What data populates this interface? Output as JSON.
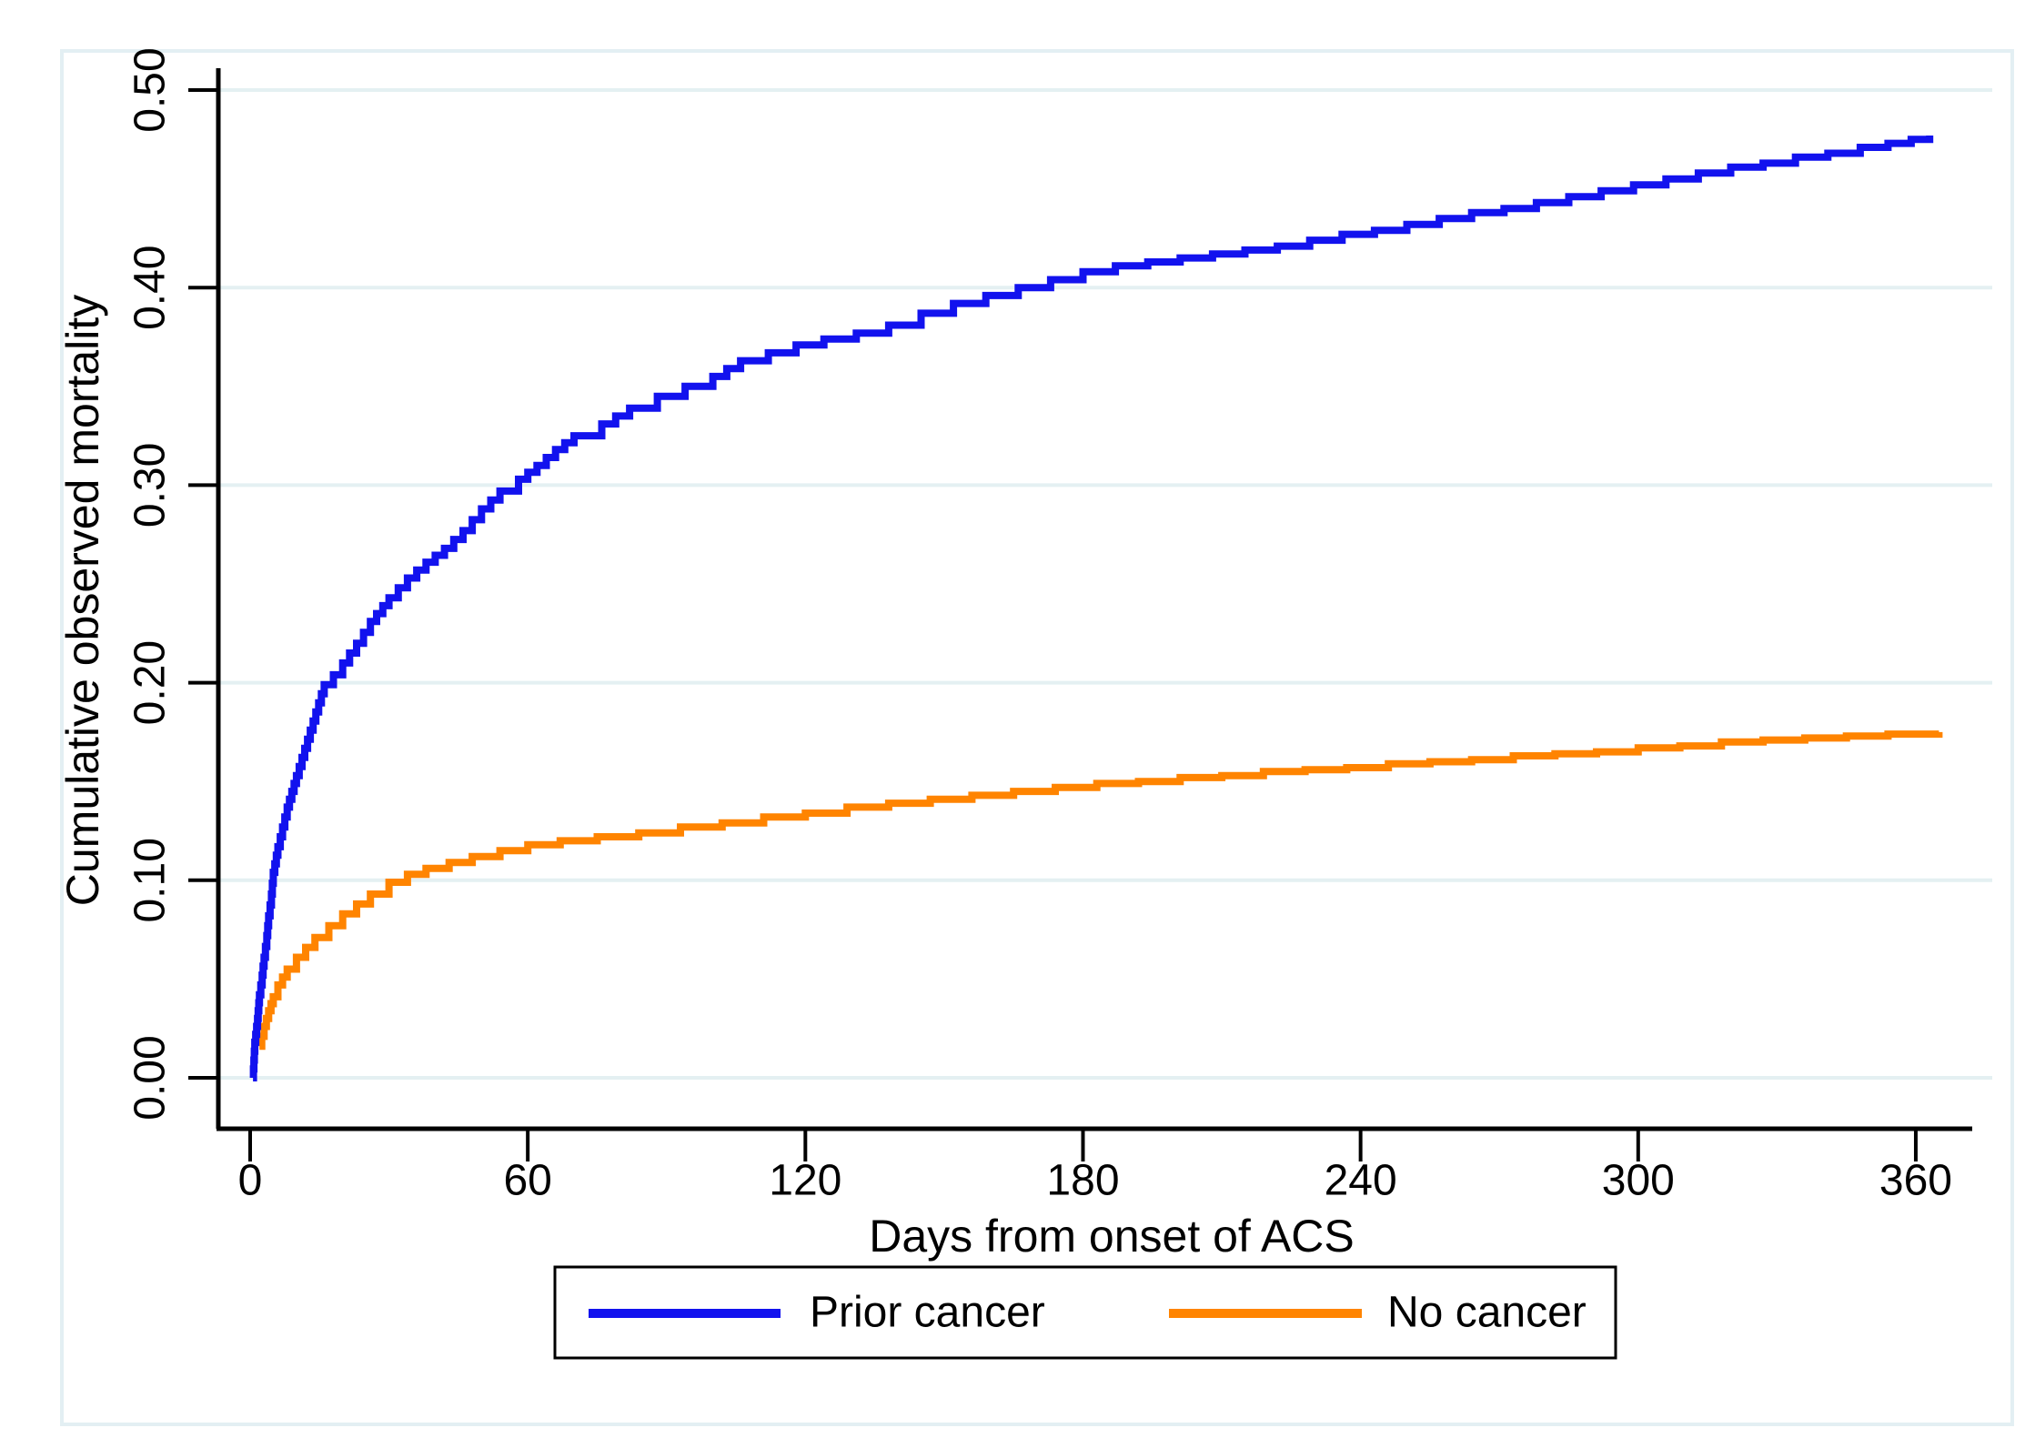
{
  "chart_data": {
    "type": "line",
    "subtype": "kaplan-meier-step",
    "title": "",
    "xlabel": "Days from onset of ACS",
    "ylabel": "Cumulative observed mortality",
    "x_ticks": [
      0,
      60,
      120,
      180,
      240,
      300,
      360
    ],
    "y_tick_labels": [
      "0.00",
      "0.10",
      "0.20",
      "0.30",
      "0.40",
      "0.50"
    ],
    "y_tick_values": [
      0.0,
      0.1,
      0.2,
      0.3,
      0.4,
      0.5
    ],
    "xlim": [
      0,
      372
    ],
    "ylim": [
      0,
      0.511
    ],
    "grid": "horizontal",
    "legend_position": "bottom-center",
    "legend_entries": [
      "Prior cancer",
      "No cancer"
    ],
    "series": [
      {
        "name": "Prior cancer",
        "color": "#1212ee",
        "points": [
          [
            0.6,
            0.0
          ],
          [
            1,
            0.018
          ],
          [
            1.6,
            0.03
          ],
          [
            2,
            0.042
          ],
          [
            2.6,
            0.052
          ],
          [
            3,
            0.061
          ],
          [
            3.6,
            0.072
          ],
          [
            4,
            0.082
          ],
          [
            4.6,
            0.093
          ],
          [
            5,
            0.104
          ],
          [
            6,
            0.117
          ],
          [
            7,
            0.127
          ],
          [
            8,
            0.137
          ],
          [
            10,
            0.153
          ],
          [
            13,
            0.176
          ],
          [
            16,
            0.199
          ],
          [
            18,
            0.204
          ],
          [
            20,
            0.21
          ],
          [
            23,
            0.22
          ],
          [
            26,
            0.231
          ],
          [
            30,
            0.243
          ],
          [
            34,
            0.253
          ],
          [
            38,
            0.261
          ],
          [
            42,
            0.268
          ],
          [
            46,
            0.277
          ],
          [
            50,
            0.288
          ],
          [
            54,
            0.297
          ],
          [
            58,
            0.303
          ],
          [
            62,
            0.31
          ],
          [
            66,
            0.318
          ],
          [
            70,
            0.325
          ],
          [
            76,
            0.331
          ],
          [
            82,
            0.339
          ],
          [
            88,
            0.345
          ],
          [
            94,
            0.35
          ],
          [
            100,
            0.355
          ],
          [
            106,
            0.363
          ],
          [
            112,
            0.367
          ],
          [
            118,
            0.371
          ],
          [
            124,
            0.374
          ],
          [
            131,
            0.377
          ],
          [
            138,
            0.381
          ],
          [
            145,
            0.387
          ],
          [
            152,
            0.392
          ],
          [
            159,
            0.396
          ],
          [
            166,
            0.4
          ],
          [
            173,
            0.404
          ],
          [
            180,
            0.408
          ],
          [
            187,
            0.411
          ],
          [
            194,
            0.413
          ],
          [
            201,
            0.415
          ],
          [
            208,
            0.417
          ],
          [
            215,
            0.419
          ],
          [
            222,
            0.421
          ],
          [
            229,
            0.424
          ],
          [
            236,
            0.427
          ],
          [
            243,
            0.429
          ],
          [
            250,
            0.432
          ],
          [
            257,
            0.435
          ],
          [
            264,
            0.438
          ],
          [
            271,
            0.44
          ],
          [
            278,
            0.443
          ],
          [
            285,
            0.446
          ],
          [
            292,
            0.449
          ],
          [
            299,
            0.452
          ],
          [
            306,
            0.455
          ],
          [
            313,
            0.458
          ],
          [
            320,
            0.461
          ],
          [
            327,
            0.463
          ],
          [
            334,
            0.466
          ],
          [
            341,
            0.468
          ],
          [
            348,
            0.471
          ],
          [
            354,
            0.473
          ],
          [
            359,
            0.475
          ],
          [
            363,
            0.477
          ]
        ]
      },
      {
        "name": "No cancer",
        "color": "#ff8400",
        "points": [
          [
            2,
            0.016
          ],
          [
            2.5,
            0.021
          ],
          [
            3,
            0.026
          ],
          [
            3.5,
            0.03
          ],
          [
            4,
            0.034
          ],
          [
            5,
            0.041
          ],
          [
            6,
            0.047
          ],
          [
            7,
            0.051
          ],
          [
            8,
            0.055
          ],
          [
            10,
            0.061
          ],
          [
            12,
            0.066
          ],
          [
            14,
            0.071
          ],
          [
            17,
            0.077
          ],
          [
            20,
            0.083
          ],
          [
            23,
            0.088
          ],
          [
            26,
            0.093
          ],
          [
            30,
            0.099
          ],
          [
            34,
            0.103
          ],
          [
            38,
            0.106
          ],
          [
            43,
            0.109
          ],
          [
            48,
            0.112
          ],
          [
            54,
            0.115
          ],
          [
            60,
            0.118
          ],
          [
            67,
            0.12
          ],
          [
            75,
            0.122
          ],
          [
            84,
            0.124
          ],
          [
            93,
            0.127
          ],
          [
            102,
            0.129
          ],
          [
            111,
            0.132
          ],
          [
            120,
            0.134
          ],
          [
            129,
            0.137
          ],
          [
            138,
            0.139
          ],
          [
            147,
            0.141
          ],
          [
            156,
            0.143
          ],
          [
            165,
            0.145
          ],
          [
            174,
            0.147
          ],
          [
            183,
            0.149
          ],
          [
            192,
            0.15
          ],
          [
            201,
            0.152
          ],
          [
            210,
            0.153
          ],
          [
            219,
            0.155
          ],
          [
            228,
            0.156
          ],
          [
            237,
            0.157
          ],
          [
            246,
            0.159
          ],
          [
            255,
            0.16
          ],
          [
            264,
            0.161
          ],
          [
            273,
            0.163
          ],
          [
            282,
            0.164
          ],
          [
            291,
            0.165
          ],
          [
            300,
            0.167
          ],
          [
            309,
            0.168
          ],
          [
            318,
            0.17
          ],
          [
            327,
            0.171
          ],
          [
            336,
            0.172
          ],
          [
            345,
            0.173
          ],
          [
            354,
            0.174
          ],
          [
            365,
            0.175
          ]
        ]
      }
    ]
  },
  "colors": {
    "prior_cancer_line": "#1212ee",
    "no_cancer_line": "#ff8400",
    "gridline": "#e4f0f2",
    "outer_border": "#e3eff3",
    "axis": "#000000",
    "text": "#000000",
    "background": "#ffffff"
  }
}
